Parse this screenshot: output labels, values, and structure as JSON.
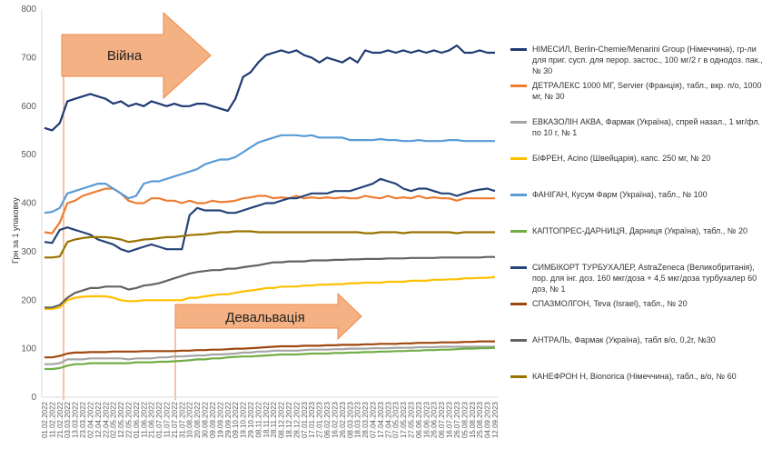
{
  "chart_data": {
    "type": "line",
    "ylabel": "Грн за 1 упаковку",
    "ylim": [
      0,
      800
    ],
    "yticks": [
      0,
      100,
      200,
      300,
      400,
      500,
      600,
      700,
      800
    ],
    "grid": false,
    "legend_position": "right",
    "x": [
      "01.02.2022",
      "11.02.2022",
      "21.02.2022",
      "03.03.2022",
      "13.03.2022",
      "23.03.2022",
      "02.04.2022",
      "12.04.2022",
      "22.04.2022",
      "02.05.2022",
      "12.05.2022",
      "22.05.2022",
      "01.06.2022",
      "11.06.2022",
      "21.06.2022",
      "01.07.2022",
      "11.07.2022",
      "21.07.2022",
      "31.07.2022",
      "10.08.2022",
      "20.08.2022",
      "30.08.2022",
      "09.09.2022",
      "19.09.2022",
      "29.09.2022",
      "09.10.2022",
      "19.10.2022",
      "29.10.2022",
      "08.11.2022",
      "18.11.2022",
      "28.11.2022",
      "08.12.2022",
      "18.12.2022",
      "28.12.2022",
      "07.01.2023",
      "17.01.2023",
      "27.01.2023",
      "06.02.2023",
      "16.02.2023",
      "26.02.2023",
      "08.03.2023",
      "18.03.2023",
      "28.03.2023",
      "07.04.2023",
      "17.04.2023",
      "27.04.2023",
      "07.05.2023",
      "17.05.2023",
      "27.05.2023",
      "06.06.2023",
      "16.06.2023",
      "26.06.2023",
      "06.07.2023",
      "16.07.2023",
      "26.07.2023",
      "05.08.2023",
      "15.08.2023",
      "25.08.2023",
      "04.09.2023",
      "12.09.2023"
    ],
    "series": [
      {
        "name": "НІМЕСИЛ, Berlin-Chemie/Menarini Group (Німеччина), гр-ли для приг. сусп. для перор. застос., 100 мг/2 г в однодоз. пак., № 30",
        "color": "#1f3a73",
        "values": [
          555,
          550,
          565,
          610,
          615,
          620,
          625,
          620,
          615,
          605,
          610,
          600,
          605,
          600,
          610,
          605,
          600,
          605,
          600,
          600,
          605,
          605,
          600,
          595,
          590,
          615,
          660,
          670,
          690,
          705,
          710,
          715,
          710,
          715,
          705,
          700,
          690,
          700,
          695,
          690,
          700,
          690,
          715,
          710,
          710,
          715,
          710,
          715,
          710,
          715,
          710,
          715,
          710,
          715,
          725,
          710,
          710,
          715,
          710,
          710
        ]
      },
      {
        "name": "ДЕТРАЛЕКС 1000 МГ, Servier (Франція), табл., вкр. п/о, 1000 мг, № 30",
        "color": "#ed7d31",
        "values": [
          340,
          338,
          360,
          400,
          405,
          415,
          420,
          425,
          430,
          430,
          420,
          405,
          400,
          400,
          410,
          410,
          405,
          405,
          400,
          405,
          400,
          400,
          405,
          402,
          403,
          405,
          410,
          412,
          415,
          415,
          410,
          412,
          410,
          415,
          410,
          412,
          410,
          412,
          410,
          412,
          410,
          410,
          415,
          412,
          410,
          415,
          410,
          412,
          410,
          415,
          410,
          412,
          410,
          410,
          405,
          410,
          410,
          410,
          410,
          410
        ]
      },
      {
        "name": "ЕВКАЗОЛІН АКВА, Фармак (Україна), спрей назал., 1 мг/фл. по 10 г, № 1",
        "color": "#a5a5a5",
        "values": [
          68,
          68,
          70,
          78,
          78,
          78,
          80,
          80,
          80,
          80,
          80,
          78,
          80,
          80,
          80,
          82,
          82,
          84,
          84,
          85,
          86,
          86,
          88,
          88,
          89,
          90,
          92,
          92,
          94,
          94,
          96,
          96,
          96,
          96,
          97,
          98,
          98,
          98,
          99,
          99,
          100,
          100,
          100,
          101,
          101,
          101,
          102,
          102,
          102,
          103,
          103,
          103,
          104,
          104,
          104,
          104,
          104,
          104,
          104,
          104
        ]
      },
      {
        "name": "БІФРЕН, Acino (Швейцарія), капс. 250 мг, № 20",
        "color": "#ffc000",
        "values": [
          182,
          182,
          185,
          200,
          205,
          207,
          208,
          208,
          208,
          205,
          200,
          198,
          198,
          200,
          200,
          200,
          200,
          200,
          200,
          205,
          205,
          208,
          210,
          212,
          212,
          215,
          218,
          220,
          222,
          225,
          225,
          228,
          228,
          228,
          230,
          230,
          232,
          232,
          233,
          233,
          235,
          235,
          236,
          236,
          236,
          238,
          238,
          238,
          240,
          240,
          240,
          242,
          242,
          243,
          243,
          245,
          245,
          246,
          246,
          248
        ]
      },
      {
        "name": "ФАНІГАН, Кусум Фарм (Україна), табл., № 100",
        "color": "#5b9bd5",
        "values": [
          380,
          382,
          390,
          420,
          425,
          430,
          435,
          440,
          440,
          430,
          420,
          410,
          415,
          440,
          445,
          445,
          450,
          455,
          460,
          465,
          470,
          480,
          485,
          490,
          490,
          495,
          505,
          515,
          525,
          530,
          535,
          540,
          540,
          540,
          538,
          540,
          535,
          535,
          535,
          535,
          530,
          530,
          530,
          530,
          532,
          530,
          530,
          528,
          528,
          530,
          528,
          528,
          528,
          530,
          530,
          528,
          528,
          528,
          528,
          528
        ]
      },
      {
        "name": "КАПТОПРЕС-ДАРНИЦЯ, Дарниця (Україна), табл., № 20",
        "color": "#70ad47",
        "values": [
          58,
          58,
          60,
          65,
          68,
          68,
          70,
          70,
          70,
          70,
          70,
          70,
          72,
          72,
          72,
          73,
          73,
          74,
          75,
          76,
          78,
          78,
          80,
          80,
          82,
          83,
          84,
          84,
          85,
          86,
          87,
          88,
          88,
          88,
          89,
          90,
          90,
          90,
          91,
          91,
          92,
          92,
          93,
          93,
          94,
          94,
          95,
          95,
          96,
          96,
          97,
          97,
          98,
          98,
          99,
          100,
          100,
          101,
          101,
          102
        ]
      },
      {
        "name": "СИМБІКОРТ ТУРБУХАЛЕР,  AstraZeneca (Великобританія), пор. для інг. доз. 160 мкг/доза + 4,5 мкг/доза турбухалер 60 доз, № 1",
        "color": "#264478",
        "values": [
          320,
          318,
          345,
          350,
          345,
          340,
          335,
          325,
          320,
          315,
          305,
          300,
          305,
          310,
          315,
          310,
          305,
          305,
          305,
          375,
          390,
          385,
          385,
          385,
          380,
          380,
          385,
          390,
          395,
          400,
          400,
          405,
          410,
          410,
          415,
          420,
          420,
          420,
          425,
          425,
          425,
          430,
          435,
          440,
          450,
          445,
          440,
          430,
          425,
          430,
          430,
          425,
          420,
          420,
          415,
          420,
          425,
          428,
          430,
          425
        ]
      },
      {
        "name": "СПАЗМОЛГОН, Teva (Israel), табл., № 20",
        "color": "#9e480e",
        "values": [
          82,
          82,
          85,
          90,
          92,
          92,
          93,
          93,
          93,
          94,
          94,
          94,
          94,
          95,
          95,
          95,
          95,
          95,
          96,
          96,
          97,
          97,
          98,
          98,
          99,
          100,
          100,
          101,
          102,
          103,
          104,
          105,
          105,
          105,
          106,
          106,
          106,
          107,
          107,
          108,
          108,
          108,
          109,
          109,
          110,
          110,
          110,
          111,
          111,
          112,
          112,
          112,
          113,
          113,
          113,
          114,
          114,
          115,
          115,
          115
        ]
      },
      {
        "name": "АНТРАЛЬ, Фармак (Україна), табл в/о, 0,2г, №30",
        "color": "#636363",
        "values": [
          185,
          185,
          190,
          205,
          215,
          220,
          225,
          225,
          228,
          228,
          228,
          222,
          225,
          230,
          232,
          235,
          240,
          245,
          250,
          255,
          258,
          260,
          262,
          262,
          265,
          265,
          268,
          270,
          272,
          275,
          278,
          278,
          280,
          280,
          280,
          282,
          282,
          282,
          283,
          283,
          284,
          284,
          285,
          285,
          285,
          286,
          286,
          286,
          287,
          287,
          287,
          287,
          288,
          288,
          288,
          288,
          288,
          288,
          289,
          289
        ]
      },
      {
        "name": "КАНЕФРОН Н, Bionorica (Німеччина), табл., в/о, № 60",
        "color": "#997300",
        "values": [
          288,
          288,
          290,
          320,
          325,
          328,
          330,
          330,
          330,
          328,
          325,
          320,
          322,
          325,
          326,
          328,
          330,
          330,
          332,
          334,
          335,
          336,
          338,
          340,
          340,
          342,
          342,
          342,
          340,
          340,
          340,
          340,
          340,
          340,
          340,
          340,
          340,
          340,
          340,
          340,
          340,
          340,
          338,
          338,
          340,
          340,
          340,
          338,
          340,
          340,
          340,
          340,
          340,
          340,
          338,
          340,
          340,
          340,
          340,
          340
        ]
      }
    ]
  },
  "annotations": {
    "war_label": "Війна",
    "devaluation_label": "Девальвація"
  }
}
